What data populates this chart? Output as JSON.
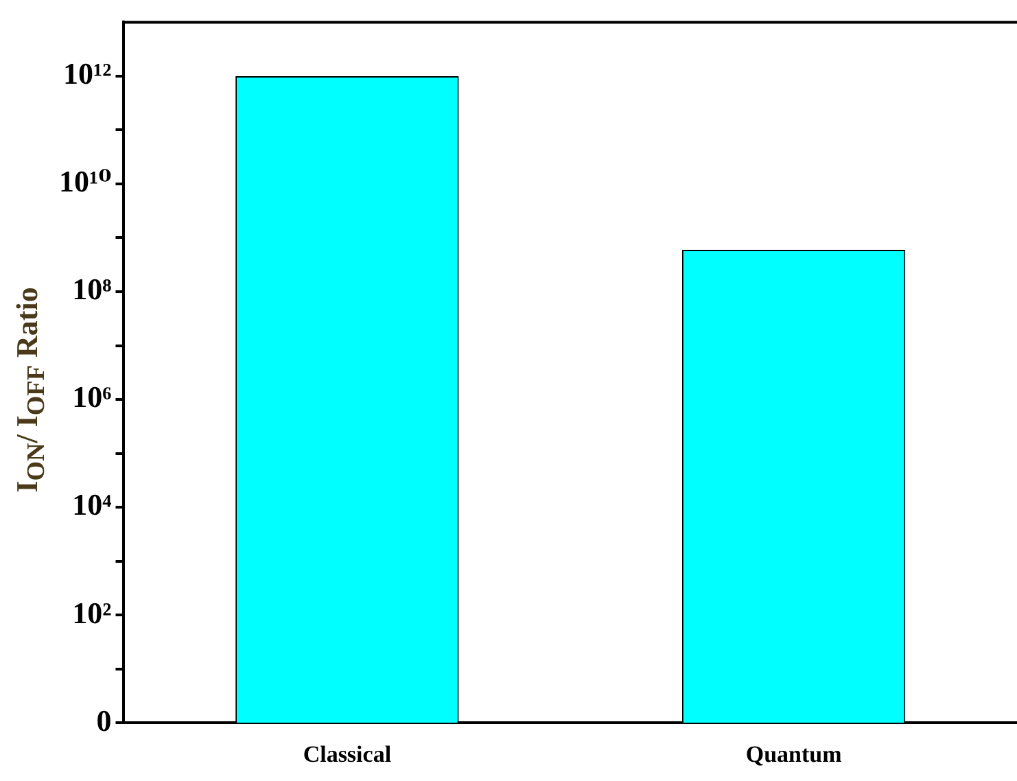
{
  "chart_data": {
    "type": "bar",
    "ylabel": "I$_{ON}$/ I$_{OFF}$ Ratio",
    "categories": [
      "Classical",
      "Quantum"
    ],
    "values": [
      1000000000000.0,
      600000000.0
    ],
    "color": "#00ffff",
    "log": true,
    "ylim": [
      0,
      10000000000000.0
    ],
    "yticks": [
      {
        "value": 0,
        "label": "0"
      },
      {
        "value": 10,
        "label": null
      },
      {
        "value": 100,
        "label": "10²"
      },
      {
        "value": 1000,
        "label": null
      },
      {
        "value": 10000,
        "label": "10⁴"
      },
      {
        "value": 100000,
        "label": null
      },
      {
        "value": 1000000,
        "label": "10⁶"
      },
      {
        "value": 10000000,
        "label": null
      },
      {
        "value": 100000000,
        "label": "10⁸"
      },
      {
        "value": 1000000000,
        "label": null
      },
      {
        "value": 10000000000,
        "label": "10¹⁰"
      },
      {
        "value": 100000000000,
        "label": null
      },
      {
        "value": 1000000000000,
        "label": "10¹²"
      }
    ],
    "grid": false,
    "legend": false
  }
}
